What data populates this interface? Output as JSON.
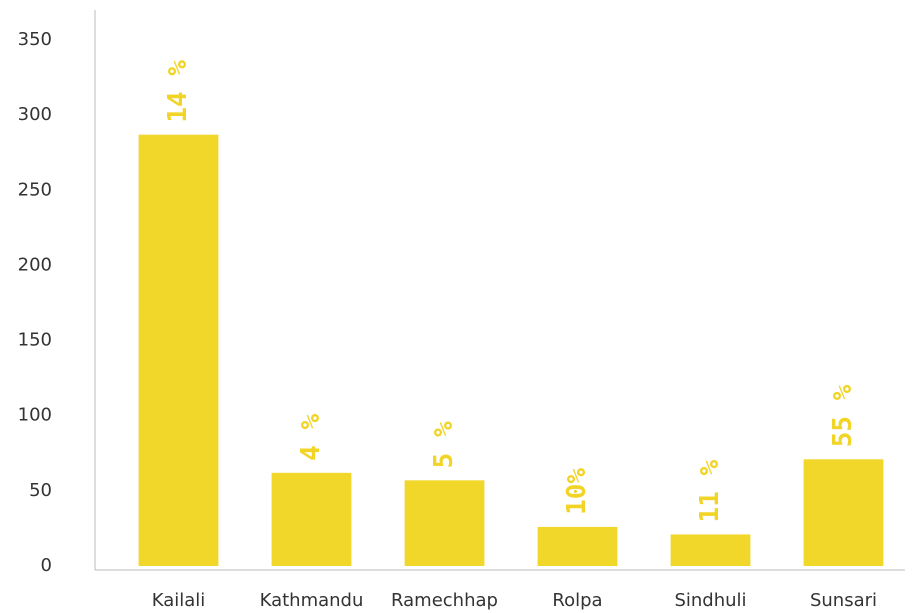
{
  "chart_data": {
    "type": "bar",
    "categories": [
      "Kailali",
      "Kathmandu",
      "Ramechhap",
      "Rolpa",
      "Sindhuli",
      "Sunsari"
    ],
    "values": [
      287,
      62,
      57,
      26,
      21,
      71
    ],
    "annotations": [
      "14 %",
      "4 %",
      "5 %",
      "10%",
      "11 %",
      "55 %"
    ],
    "color": "#f2d72b",
    "ylim": [
      0,
      350
    ],
    "yticks": [
      0,
      50,
      100,
      150,
      200,
      250,
      300,
      350
    ],
    "grid": false
  }
}
